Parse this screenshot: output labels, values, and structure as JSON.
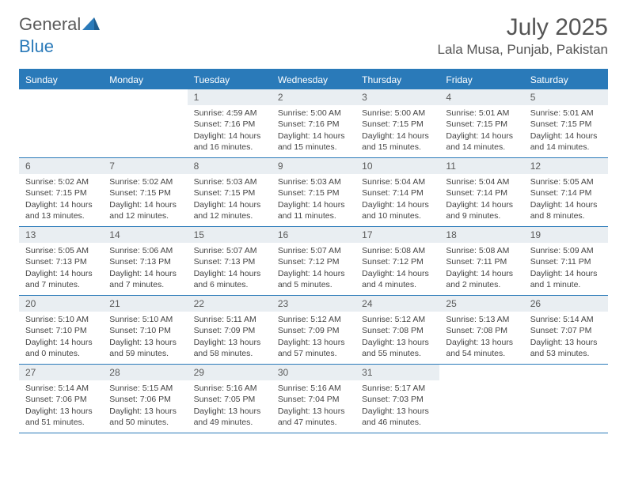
{
  "brand": {
    "word1": "General",
    "word2": "Blue"
  },
  "title": {
    "month": "July 2025",
    "location": "Lala Musa, Punjab, Pakistan"
  },
  "colors": {
    "accent": "#2a7ab9",
    "headerText": "#555555",
    "dayHeaderBg": "#e9eef2",
    "background": "#ffffff",
    "text": "#444444"
  },
  "weekdays": [
    "Sunday",
    "Monday",
    "Tuesday",
    "Wednesday",
    "Thursday",
    "Friday",
    "Saturday"
  ],
  "weeks": [
    [
      null,
      null,
      {
        "n": "1",
        "sr": "Sunrise: 4:59 AM",
        "ss": "Sunset: 7:16 PM",
        "d1": "Daylight: 14 hours",
        "d2": "and 16 minutes."
      },
      {
        "n": "2",
        "sr": "Sunrise: 5:00 AM",
        "ss": "Sunset: 7:16 PM",
        "d1": "Daylight: 14 hours",
        "d2": "and 15 minutes."
      },
      {
        "n": "3",
        "sr": "Sunrise: 5:00 AM",
        "ss": "Sunset: 7:15 PM",
        "d1": "Daylight: 14 hours",
        "d2": "and 15 minutes."
      },
      {
        "n": "4",
        "sr": "Sunrise: 5:01 AM",
        "ss": "Sunset: 7:15 PM",
        "d1": "Daylight: 14 hours",
        "d2": "and 14 minutes."
      },
      {
        "n": "5",
        "sr": "Sunrise: 5:01 AM",
        "ss": "Sunset: 7:15 PM",
        "d1": "Daylight: 14 hours",
        "d2": "and 14 minutes."
      }
    ],
    [
      {
        "n": "6",
        "sr": "Sunrise: 5:02 AM",
        "ss": "Sunset: 7:15 PM",
        "d1": "Daylight: 14 hours",
        "d2": "and 13 minutes."
      },
      {
        "n": "7",
        "sr": "Sunrise: 5:02 AM",
        "ss": "Sunset: 7:15 PM",
        "d1": "Daylight: 14 hours",
        "d2": "and 12 minutes."
      },
      {
        "n": "8",
        "sr": "Sunrise: 5:03 AM",
        "ss": "Sunset: 7:15 PM",
        "d1": "Daylight: 14 hours",
        "d2": "and 12 minutes."
      },
      {
        "n": "9",
        "sr": "Sunrise: 5:03 AM",
        "ss": "Sunset: 7:15 PM",
        "d1": "Daylight: 14 hours",
        "d2": "and 11 minutes."
      },
      {
        "n": "10",
        "sr": "Sunrise: 5:04 AM",
        "ss": "Sunset: 7:14 PM",
        "d1": "Daylight: 14 hours",
        "d2": "and 10 minutes."
      },
      {
        "n": "11",
        "sr": "Sunrise: 5:04 AM",
        "ss": "Sunset: 7:14 PM",
        "d1": "Daylight: 14 hours",
        "d2": "and 9 minutes."
      },
      {
        "n": "12",
        "sr": "Sunrise: 5:05 AM",
        "ss": "Sunset: 7:14 PM",
        "d1": "Daylight: 14 hours",
        "d2": "and 8 minutes."
      }
    ],
    [
      {
        "n": "13",
        "sr": "Sunrise: 5:05 AM",
        "ss": "Sunset: 7:13 PM",
        "d1": "Daylight: 14 hours",
        "d2": "and 7 minutes."
      },
      {
        "n": "14",
        "sr": "Sunrise: 5:06 AM",
        "ss": "Sunset: 7:13 PM",
        "d1": "Daylight: 14 hours",
        "d2": "and 7 minutes."
      },
      {
        "n": "15",
        "sr": "Sunrise: 5:07 AM",
        "ss": "Sunset: 7:13 PM",
        "d1": "Daylight: 14 hours",
        "d2": "and 6 minutes."
      },
      {
        "n": "16",
        "sr": "Sunrise: 5:07 AM",
        "ss": "Sunset: 7:12 PM",
        "d1": "Daylight: 14 hours",
        "d2": "and 5 minutes."
      },
      {
        "n": "17",
        "sr": "Sunrise: 5:08 AM",
        "ss": "Sunset: 7:12 PM",
        "d1": "Daylight: 14 hours",
        "d2": "and 4 minutes."
      },
      {
        "n": "18",
        "sr": "Sunrise: 5:08 AM",
        "ss": "Sunset: 7:11 PM",
        "d1": "Daylight: 14 hours",
        "d2": "and 2 minutes."
      },
      {
        "n": "19",
        "sr": "Sunrise: 5:09 AM",
        "ss": "Sunset: 7:11 PM",
        "d1": "Daylight: 14 hours",
        "d2": "and 1 minute."
      }
    ],
    [
      {
        "n": "20",
        "sr": "Sunrise: 5:10 AM",
        "ss": "Sunset: 7:10 PM",
        "d1": "Daylight: 14 hours",
        "d2": "and 0 minutes."
      },
      {
        "n": "21",
        "sr": "Sunrise: 5:10 AM",
        "ss": "Sunset: 7:10 PM",
        "d1": "Daylight: 13 hours",
        "d2": "and 59 minutes."
      },
      {
        "n": "22",
        "sr": "Sunrise: 5:11 AM",
        "ss": "Sunset: 7:09 PM",
        "d1": "Daylight: 13 hours",
        "d2": "and 58 minutes."
      },
      {
        "n": "23",
        "sr": "Sunrise: 5:12 AM",
        "ss": "Sunset: 7:09 PM",
        "d1": "Daylight: 13 hours",
        "d2": "and 57 minutes."
      },
      {
        "n": "24",
        "sr": "Sunrise: 5:12 AM",
        "ss": "Sunset: 7:08 PM",
        "d1": "Daylight: 13 hours",
        "d2": "and 55 minutes."
      },
      {
        "n": "25",
        "sr": "Sunrise: 5:13 AM",
        "ss": "Sunset: 7:08 PM",
        "d1": "Daylight: 13 hours",
        "d2": "and 54 minutes."
      },
      {
        "n": "26",
        "sr": "Sunrise: 5:14 AM",
        "ss": "Sunset: 7:07 PM",
        "d1": "Daylight: 13 hours",
        "d2": "and 53 minutes."
      }
    ],
    [
      {
        "n": "27",
        "sr": "Sunrise: 5:14 AM",
        "ss": "Sunset: 7:06 PM",
        "d1": "Daylight: 13 hours",
        "d2": "and 51 minutes."
      },
      {
        "n": "28",
        "sr": "Sunrise: 5:15 AM",
        "ss": "Sunset: 7:06 PM",
        "d1": "Daylight: 13 hours",
        "d2": "and 50 minutes."
      },
      {
        "n": "29",
        "sr": "Sunrise: 5:16 AM",
        "ss": "Sunset: 7:05 PM",
        "d1": "Daylight: 13 hours",
        "d2": "and 49 minutes."
      },
      {
        "n": "30",
        "sr": "Sunrise: 5:16 AM",
        "ss": "Sunset: 7:04 PM",
        "d1": "Daylight: 13 hours",
        "d2": "and 47 minutes."
      },
      {
        "n": "31",
        "sr": "Sunrise: 5:17 AM",
        "ss": "Sunset: 7:03 PM",
        "d1": "Daylight: 13 hours",
        "d2": "and 46 minutes."
      },
      null,
      null
    ]
  ]
}
